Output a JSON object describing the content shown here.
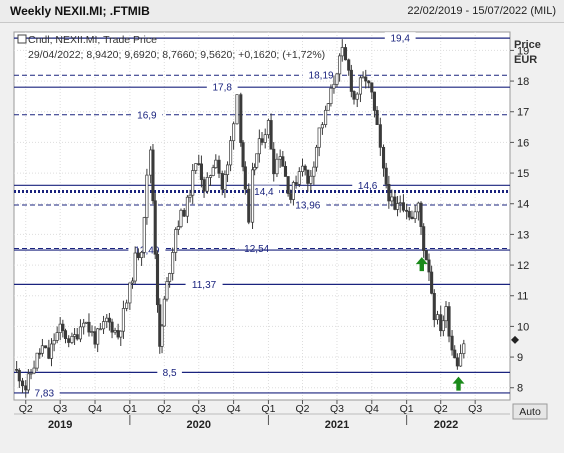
{
  "header": {
    "title": "Weekly NEXII.MI; .FTMIB",
    "date_range": "22/02/2019 - 15/07/2022 (MIL)"
  },
  "legend": {
    "line1": "Cndl; NEXII.MI; Trade Price",
    "line2": "29/04/2022; 8,9420; 9,6920; 8,7660; 9,5620; +0,1620; (+1,72%)"
  },
  "auto_button": "Auto",
  "colors": {
    "background": "#ffffff",
    "level_line": "#1a237e",
    "candle": "#3a3a3a",
    "arrow": "#1a8a1a",
    "marker": "#222222"
  },
  "chart_data": {
    "type": "candlestick",
    "ylabel": "Price\nEUR",
    "ylim": [
      7.6,
      19.6
    ],
    "yticks": [
      8,
      9,
      10,
      11,
      12,
      13,
      14,
      15,
      16,
      17,
      18,
      19
    ],
    "xlim": [
      "2019-03-01",
      "2022-10-01"
    ],
    "quarter_ticks": [
      {
        "date": "2019-04-01",
        "label": "Q2"
      },
      {
        "date": "2019-07-01",
        "label": "Q3"
      },
      {
        "date": "2019-10-01",
        "label": "Q4"
      },
      {
        "date": "2020-01-01",
        "label": "Q1"
      },
      {
        "date": "2020-04-01",
        "label": "Q2"
      },
      {
        "date": "2020-07-01",
        "label": "Q3"
      },
      {
        "date": "2020-10-01",
        "label": "Q4"
      },
      {
        "date": "2021-01-01",
        "label": "Q1"
      },
      {
        "date": "2021-04-01",
        "label": "Q2"
      },
      {
        "date": "2021-07-01",
        "label": "Q3"
      },
      {
        "date": "2021-10-01",
        "label": "Q4"
      },
      {
        "date": "2022-01-01",
        "label": "Q1"
      },
      {
        "date": "2022-04-01",
        "label": "Q2"
      },
      {
        "date": "2022-07-01",
        "label": "Q3"
      }
    ],
    "year_ticks": [
      {
        "date": "2019-07-01",
        "label": "2019"
      },
      {
        "date": "2020-07-01",
        "label": "2020"
      },
      {
        "date": "2021-07-01",
        "label": "2021"
      },
      {
        "date": "2022-04-15",
        "label": "2022"
      }
    ],
    "year_separators": [
      "2020-01-01",
      "2021-01-01",
      "2022-01-01"
    ],
    "levels": [
      {
        "value": 19.4,
        "label": "19,4",
        "style": "solid",
        "label_date": "2021-12-15"
      },
      {
        "value": 18.19,
        "label": "18,19",
        "style": "dashed",
        "label_date": "2021-05-20"
      },
      {
        "value": 17.8,
        "label": "17,8",
        "style": "solid",
        "label_date": "2020-09-01"
      },
      {
        "value": 16.9,
        "label": "16,9",
        "style": "dashed",
        "label_date": "2020-02-15"
      },
      {
        "value": 14.6,
        "label": "14,6",
        "style": "solid",
        "label_date": "2021-09-20"
      },
      {
        "value": 14.4,
        "label": "14,4",
        "style": "dotted",
        "label_date": "2020-12-20"
      },
      {
        "value": 13.96,
        "label": "13,96",
        "style": "dashed",
        "label_date": "2021-04-15"
      },
      {
        "value": 12.54,
        "label": "12,54",
        "style": "dashed",
        "label_date": "2020-12-01"
      },
      {
        "value": 12.49,
        "label": "12,49",
        "style": "solid",
        "label_date": "2020-02-15"
      },
      {
        "value": 11.37,
        "label": "11,37",
        "style": "solid",
        "label_date": "2020-07-15"
      },
      {
        "value": 8.5,
        "label": "8,5",
        "style": "solid",
        "label_date": "2020-04-15"
      },
      {
        "value": 7.83,
        "label": "7,83",
        "style": "solid",
        "label_date": "2019-05-20"
      }
    ],
    "series": [
      {
        "date": "2019-03-01",
        "close": 8.6
      },
      {
        "date": "2019-03-15",
        "close": 8.4
      },
      {
        "date": "2019-04-01",
        "close": 8.0
      },
      {
        "date": "2019-04-15",
        "close": 8.5
      },
      {
        "date": "2019-05-01",
        "close": 9.0
      },
      {
        "date": "2019-05-15",
        "close": 9.3
      },
      {
        "date": "2019-06-01",
        "close": 9.0
      },
      {
        "date": "2019-06-15",
        "close": 9.6
      },
      {
        "date": "2019-07-01",
        "close": 9.9
      },
      {
        "date": "2019-07-15",
        "close": 9.7
      },
      {
        "date": "2019-08-01",
        "close": 9.5
      },
      {
        "date": "2019-08-15",
        "close": 9.8
      },
      {
        "date": "2019-09-01",
        "close": 10.3
      },
      {
        "date": "2019-09-15",
        "close": 9.9
      },
      {
        "date": "2019-10-01",
        "close": 9.6
      },
      {
        "date": "2019-10-15",
        "close": 9.8
      },
      {
        "date": "2019-11-01",
        "close": 10.2
      },
      {
        "date": "2019-11-15",
        "close": 10.0
      },
      {
        "date": "2019-12-01",
        "close": 9.7
      },
      {
        "date": "2019-12-15",
        "close": 10.4
      },
      {
        "date": "2020-01-01",
        "close": 11.2
      },
      {
        "date": "2020-01-15",
        "close": 12.2
      },
      {
        "date": "2020-02-01",
        "close": 12.6
      },
      {
        "date": "2020-02-15",
        "close": 14.8
      },
      {
        "date": "2020-02-25",
        "close": 15.8
      },
      {
        "date": "2020-03-08",
        "close": 12.5
      },
      {
        "date": "2020-03-20",
        "close": 9.2
      },
      {
        "date": "2020-04-01",
        "close": 10.8
      },
      {
        "date": "2020-04-15",
        "close": 11.9
      },
      {
        "date": "2020-05-01",
        "close": 13.2
      },
      {
        "date": "2020-05-15",
        "close": 13.6
      },
      {
        "date": "2020-06-01",
        "close": 14.0
      },
      {
        "date": "2020-06-15",
        "close": 14.9
      },
      {
        "date": "2020-07-01",
        "close": 15.5
      },
      {
        "date": "2020-07-15",
        "close": 14.3
      },
      {
        "date": "2020-08-01",
        "close": 15.0
      },
      {
        "date": "2020-08-15",
        "close": 15.6
      },
      {
        "date": "2020-09-01",
        "close": 14.5
      },
      {
        "date": "2020-09-15",
        "close": 15.2
      },
      {
        "date": "2020-10-01",
        "close": 16.8
      },
      {
        "date": "2020-10-10",
        "close": 17.6
      },
      {
        "date": "2020-10-20",
        "close": 16.2
      },
      {
        "date": "2020-11-01",
        "close": 14.3
      },
      {
        "date": "2020-11-10",
        "close": 13.2
      },
      {
        "date": "2020-11-20",
        "close": 14.9
      },
      {
        "date": "2020-12-01",
        "close": 15.6
      },
      {
        "date": "2020-12-15",
        "close": 16.2
      },
      {
        "date": "2021-01-01",
        "close": 16.6
      },
      {
        "date": "2021-01-15",
        "close": 15.2
      },
      {
        "date": "2021-02-01",
        "close": 15.7
      },
      {
        "date": "2021-02-15",
        "close": 14.9
      },
      {
        "date": "2021-03-01",
        "close": 14.2
      },
      {
        "date": "2021-03-15",
        "close": 14.8
      },
      {
        "date": "2021-04-01",
        "close": 15.4
      },
      {
        "date": "2021-04-15",
        "close": 14.6
      },
      {
        "date": "2021-05-01",
        "close": 15.4
      },
      {
        "date": "2021-05-15",
        "close": 16.4
      },
      {
        "date": "2021-06-01",
        "close": 16.9
      },
      {
        "date": "2021-06-15",
        "close": 17.6
      },
      {
        "date": "2021-07-01",
        "close": 18.4
      },
      {
        "date": "2021-07-15",
        "close": 18.9
      },
      {
        "date": "2021-08-01",
        "close": 18.3
      },
      {
        "date": "2021-08-15",
        "close": 17.4
      },
      {
        "date": "2021-09-01",
        "close": 17.9
      },
      {
        "date": "2021-09-15",
        "close": 18.1
      },
      {
        "date": "2021-10-01",
        "close": 17.5
      },
      {
        "date": "2021-10-15",
        "close": 16.4
      },
      {
        "date": "2021-11-01",
        "close": 15.0
      },
      {
        "date": "2021-11-15",
        "close": 14.3
      },
      {
        "date": "2021-12-01",
        "close": 13.7
      },
      {
        "date": "2021-12-15",
        "close": 14.1
      },
      {
        "date": "2022-01-01",
        "close": 13.9
      },
      {
        "date": "2022-01-15",
        "close": 13.5
      },
      {
        "date": "2022-02-01",
        "close": 13.9
      },
      {
        "date": "2022-02-15",
        "close": 12.6
      },
      {
        "date": "2022-03-01",
        "close": 11.9
      },
      {
        "date": "2022-03-15",
        "close": 10.4
      },
      {
        "date": "2022-04-01",
        "close": 10.0
      },
      {
        "date": "2022-04-15",
        "close": 10.5
      },
      {
        "date": "2022-05-01",
        "close": 9.3
      },
      {
        "date": "2022-05-15",
        "close": 8.9
      },
      {
        "date": "2022-06-01",
        "close": 9.5
      }
    ],
    "arrows": [
      {
        "date": "2022-02-10",
        "value": 12.0,
        "direction": "up"
      },
      {
        "date": "2022-05-18",
        "value": 8.1,
        "direction": "up"
      }
    ],
    "last_price": 9.56
  }
}
